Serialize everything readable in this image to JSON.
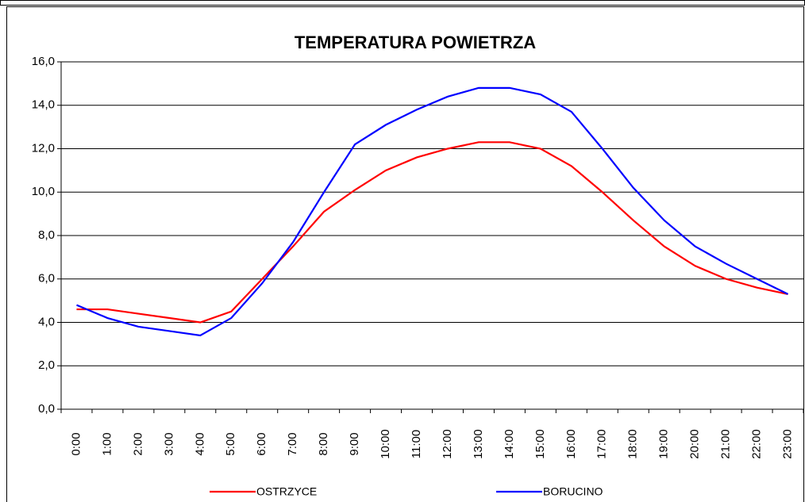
{
  "chart_data": {
    "type": "line",
    "title": "TEMPERATURA POWIETRZA",
    "categories": [
      "0:00",
      "1:00",
      "2:00",
      "3:00",
      "4:00",
      "5:00",
      "6:00",
      "7:00",
      "8:00",
      "9:00",
      "10:00",
      "11:00",
      "12:00",
      "13:00",
      "14:00",
      "15:00",
      "16:00",
      "17:00",
      "18:00",
      "19:00",
      "20:00",
      "21:00",
      "22:00",
      "23:00"
    ],
    "series": [
      {
        "name": "OSTRZYCE",
        "color": "#ff0000",
        "values": [
          4.6,
          4.6,
          4.4,
          4.2,
          4.0,
          4.5,
          6.0,
          7.5,
          9.1,
          10.1,
          11.0,
          11.6,
          12.0,
          12.3,
          12.3,
          12.0,
          11.2,
          10.0,
          8.7,
          7.5,
          6.6,
          6.0,
          5.6,
          5.3
        ]
      },
      {
        "name": "BORUCINO",
        "color": "#0000ff",
        "values": [
          4.8,
          4.2,
          3.8,
          3.6,
          3.4,
          4.2,
          5.8,
          7.7,
          10.0,
          12.2,
          13.1,
          13.8,
          14.4,
          14.8,
          14.8,
          14.5,
          13.7,
          12.0,
          10.2,
          8.7,
          7.5,
          6.7,
          6.0,
          5.3
        ]
      }
    ],
    "ylim": [
      0,
      16
    ],
    "yticks": [
      {
        "value": 0,
        "label": "0,0"
      },
      {
        "value": 2,
        "label": "2,0"
      },
      {
        "value": 4,
        "label": "4,0"
      },
      {
        "value": 6,
        "label": "6,0"
      },
      {
        "value": 8,
        "label": "8,0"
      },
      {
        "value": 10,
        "label": "10,0"
      },
      {
        "value": 12,
        "label": "12,0"
      },
      {
        "value": 14,
        "label": "14,0"
      },
      {
        "value": 16,
        "label": "16,0"
      }
    ],
    "grid": true,
    "legend": "bottom"
  }
}
